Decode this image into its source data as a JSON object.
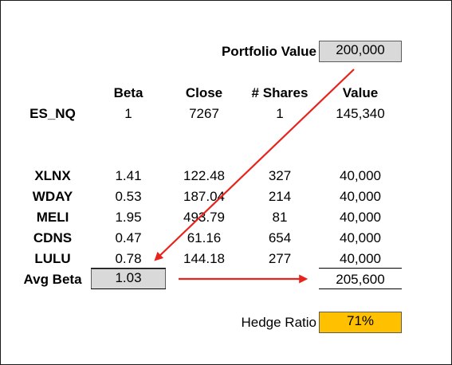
{
  "portfolio": {
    "label": "Portfolio Value",
    "value": "200,000"
  },
  "headers": {
    "beta": "Beta",
    "close": "Close",
    "shares": "# Shares",
    "value": "Value"
  },
  "index_row": {
    "ticker": "ES_NQ",
    "beta": "1",
    "close": "7267",
    "shares": "1",
    "value": "145,340"
  },
  "stocks": [
    {
      "ticker": "XLNX",
      "beta": "1.41",
      "close": "122.48",
      "shares": "327",
      "value": "40,000"
    },
    {
      "ticker": "WDAY",
      "beta": "0.53",
      "close": "187.04",
      "shares": "214",
      "value": "40,000"
    },
    {
      "ticker": "MELI",
      "beta": "1.95",
      "close": "493.79",
      "shares": "81",
      "value": "40,000"
    },
    {
      "ticker": "CDNS",
      "beta": "0.47",
      "close": "61.16",
      "shares": "654",
      "value": "40,000"
    },
    {
      "ticker": "LULU",
      "beta": "0.78",
      "close": "144.18",
      "shares": "277",
      "value": "40,000"
    }
  ],
  "avg_beta": {
    "label": "Avg Beta",
    "value": "1.03"
  },
  "total_value": "205,600",
  "hedge": {
    "label": "Hedge Ratio",
    "value": "71%"
  },
  "colors": {
    "input_cell_bg": "#d9d9d9",
    "hedge_cell_bg": "#ffc000",
    "arrow": "#e8231c"
  }
}
